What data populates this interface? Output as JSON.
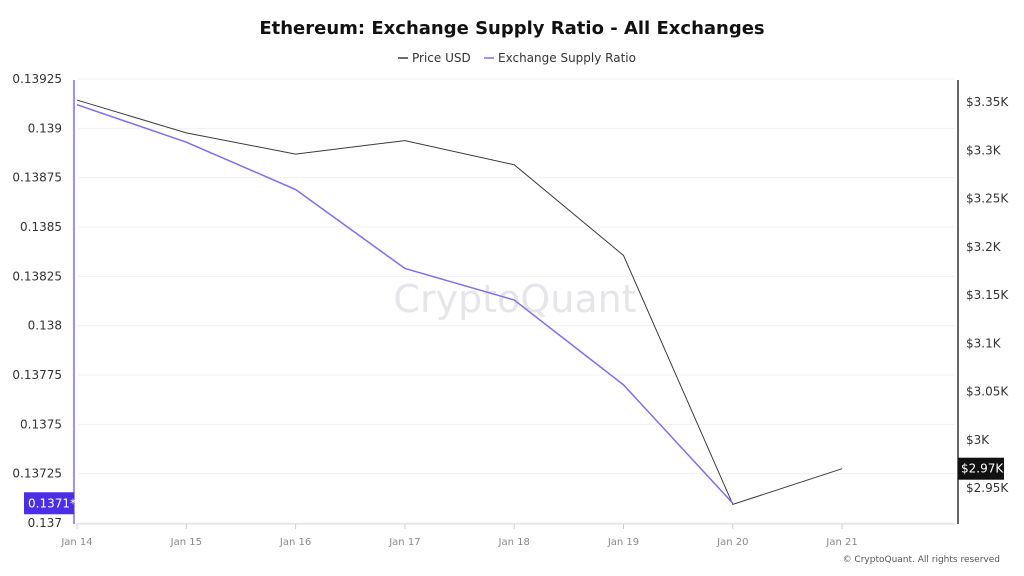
{
  "chart_data": {
    "type": "line",
    "title": "Ethereum: Exchange Supply Ratio - All Exchanges",
    "categories": [
      "Jan 14",
      "Jan 15",
      "Jan 16",
      "Jan 17",
      "Jan 18",
      "Jan 19",
      "Jan 20",
      "Jan 21"
    ],
    "series": [
      {
        "name": "Price USD",
        "axis": "right",
        "color": "#3a3a3a",
        "values": [
          3352,
          3318,
          3296,
          3310,
          3285,
          3191,
          2933,
          2970
        ]
      },
      {
        "name": "Exchange Supply Ratio",
        "axis": "left",
        "color": "#7d6df2",
        "values": [
          0.13912,
          0.13893,
          0.13869,
          0.13829,
          0.13813,
          0.1377,
          0.1371,
          null
        ]
      }
    ],
    "left_axis": {
      "ylim": [
        0.137,
        0.13925
      ],
      "ticks": [
        "0.137",
        "0.13725",
        "0.1375",
        "0.13775",
        "0.138",
        "0.13825",
        "0.1385",
        "0.13875",
        "0.139",
        "0.13925"
      ],
      "tick_values": [
        0.137,
        0.13725,
        0.1375,
        0.13775,
        0.138,
        0.13825,
        0.1385,
        0.13875,
        0.139,
        0.13925
      ],
      "current_label": "0.1371*",
      "current_value": 0.1371,
      "label_color": "#4b2ee6"
    },
    "right_axis": {
      "ylim": [
        2950,
        3350
      ],
      "ticks": [
        "$2.95K",
        "$3K",
        "$3.05K",
        "$3.1K",
        "$3.15K",
        "$3.2K",
        "$3.25K",
        "$3.3K",
        "$3.35K"
      ],
      "tick_values": [
        2950,
        3000,
        3050,
        3100,
        3150,
        3200,
        3250,
        3300,
        3350
      ],
      "current_label": "$2.97K",
      "current_value": 2970,
      "label_color": "#111111"
    },
    "grid": true,
    "legend": "top-center"
  },
  "watermark": "CryptoQuant",
  "copyright": "© CryptoQuant. All rights reserved"
}
